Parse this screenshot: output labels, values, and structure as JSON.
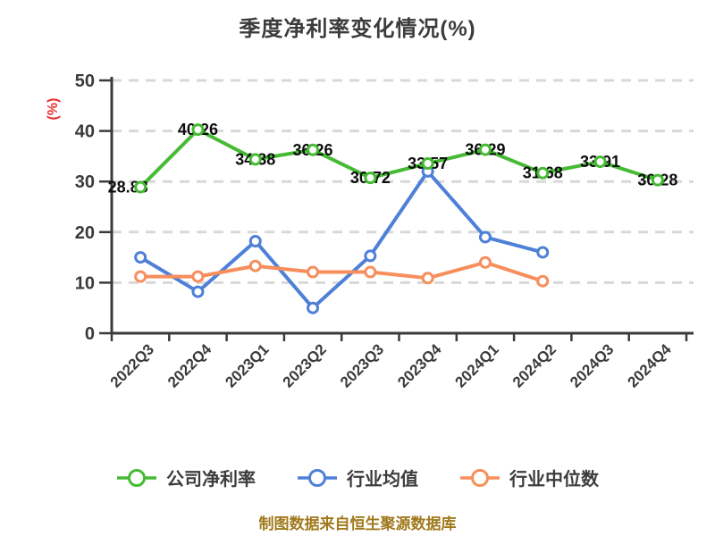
{
  "title": "季度净利率变化情况(%)",
  "footer": "制图数据来自恒生聚源数据库",
  "colors": {
    "company_series": "#45bb33",
    "industry_avg_series": "#4e80d8",
    "industry_median_series": "#f78e5b",
    "grid_line": "#d8d8d8",
    "axis": "#3a3a3a",
    "title_text": "#3c3c3c",
    "value_label_text": "#0d0d0d",
    "y_unit_label": "#e8302e",
    "footer_text": "#a0791c",
    "marker_fill": "#ffffff"
  },
  "chart_data": {
    "type": "line",
    "title": "季度净利率变化情况(%)",
    "ylabel": "(%)",
    "xlabel": "",
    "ylim": [
      0,
      50
    ],
    "y_ticks": [
      0,
      10,
      20,
      30,
      40,
      50
    ],
    "grid": "horizontal dashed",
    "legend_position": "bottom",
    "categories": [
      "2022Q3",
      "2022Q4",
      "2023Q1",
      "2023Q2",
      "2023Q3",
      "2023Q4",
      "2024Q1",
      "2024Q2",
      "2024Q3",
      "2024Q4"
    ],
    "series": [
      {
        "name": "公司净利率",
        "color": "#45bb33",
        "values": [
          28.88,
          40.26,
          34.38,
          36.26,
          30.72,
          33.57,
          36.29,
          31.68,
          33.91,
          30.28
        ],
        "point_labels": [
          "28.88",
          "40.26",
          "34.38",
          "36.26",
          "30.72",
          "33.57",
          "36.29",
          "31.68",
          "33.91",
          "30.28"
        ]
      },
      {
        "name": "行业均值",
        "color": "#4e80d8",
        "values": [
          15.0,
          8.2,
          18.2,
          5.0,
          15.3,
          32.0,
          19.0,
          16.0,
          null,
          null
        ],
        "point_labels": null
      },
      {
        "name": "行业中位数",
        "color": "#f78e5b",
        "values": [
          11.2,
          11.2,
          13.3,
          12.1,
          12.1,
          10.9,
          14.0,
          10.3,
          null,
          null
        ],
        "point_labels": null
      }
    ],
    "source_note": "制图数据来自恒生聚源数据库"
  }
}
